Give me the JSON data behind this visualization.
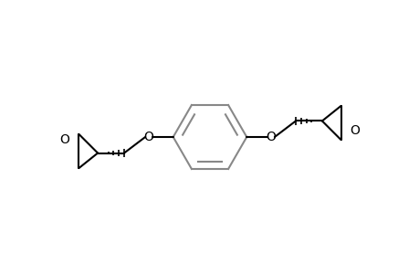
{
  "background_color": "#ffffff",
  "line_color": "#000000",
  "ring_color": "#888888",
  "bond_width": 1.5,
  "label_fontsize": 10,
  "label_color": "#000000",
  "o_label_fontsize": 10,
  "xlim": [
    -1.1,
    1.1
  ],
  "ylim": [
    -0.55,
    0.55
  ],
  "figsize": [
    4.6,
    3.0
  ],
  "dpi": 100
}
